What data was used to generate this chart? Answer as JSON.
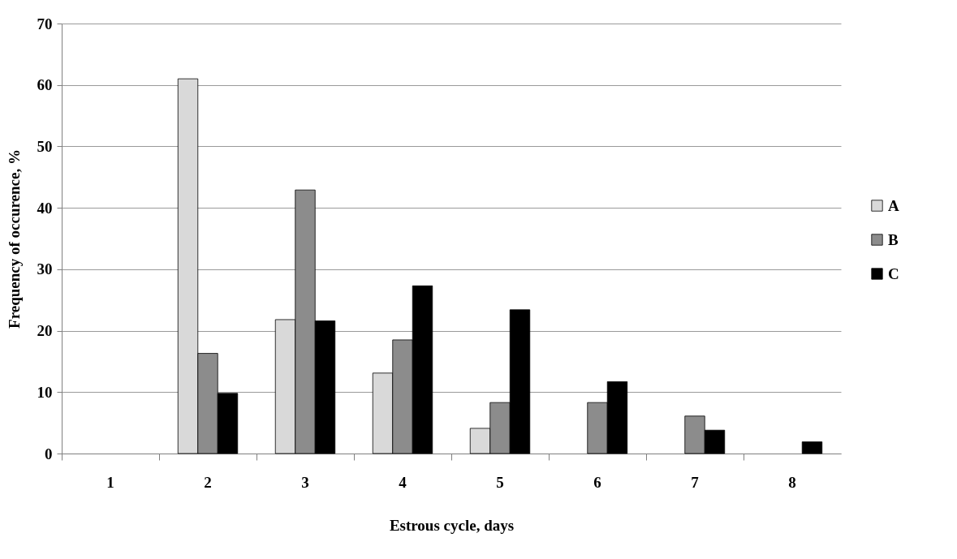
{
  "chart_data": {
    "type": "bar",
    "xlabel": "Estrous cycle, days",
    "ylabel": "Frequency of occurence, %",
    "categories": [
      "1",
      "2",
      "3",
      "4",
      "5",
      "6",
      "7",
      "8"
    ],
    "series": [
      {
        "name": "A",
        "color": "#d9d9d9",
        "values": [
          null,
          61,
          21.8,
          13.1,
          4.1,
          null,
          null,
          null
        ]
      },
      {
        "name": "B",
        "color": "#8c8c8c",
        "values": [
          null,
          16.3,
          42.9,
          18.5,
          8.3,
          8.3,
          6.1,
          null
        ]
      },
      {
        "name": "C",
        "color": "#000000",
        "values": [
          null,
          9.8,
          21.6,
          27.3,
          23.4,
          11.7,
          3.8,
          1.9
        ]
      }
    ],
    "ylim": [
      0,
      70
    ],
    "yticks": [
      0,
      10,
      20,
      30,
      40,
      50,
      60,
      70
    ],
    "grid": "y",
    "legend": "right"
  }
}
